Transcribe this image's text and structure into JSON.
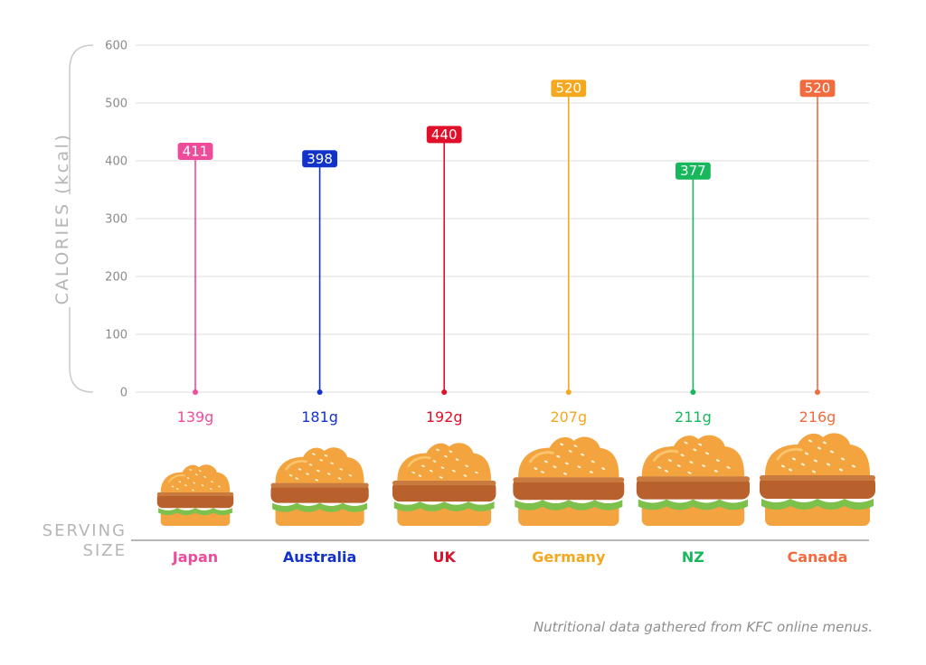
{
  "chart_data": {
    "type": "lollipop",
    "ylabel": "CALORIES (kcal)",
    "ylim": [
      0,
      600
    ],
    "yticks": [
      0,
      100,
      200,
      300,
      400,
      500,
      600
    ],
    "grid": true,
    "categories": [
      "Japan",
      "Australia",
      "UK",
      "Germany",
      "NZ",
      "Canada"
    ],
    "values": [
      411,
      398,
      440,
      520,
      377,
      520
    ],
    "value_labels": [
      "411",
      "398",
      "440",
      "520",
      "377",
      "520"
    ],
    "serving_sizes_g": [
      139,
      181,
      192,
      207,
      211,
      216
    ],
    "serving_labels": [
      "139g",
      "181g",
      "192g",
      "207g",
      "211g",
      "216g"
    ],
    "colors": [
      "#ee4c9b",
      "#1232c9",
      "#e0102a",
      "#f4a81f",
      "#16b85b",
      "#f26b3f"
    ],
    "serving_axis_label": [
      "SERVING",
      "SIZE"
    ],
    "source_note": "Nutritional data gathered from KFC online menus."
  }
}
